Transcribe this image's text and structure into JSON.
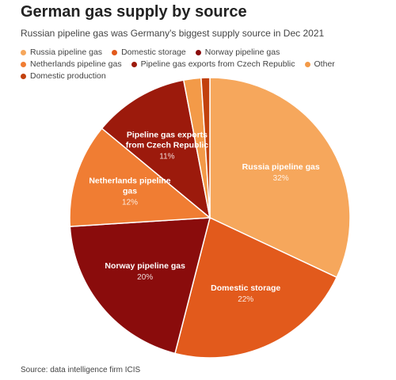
{
  "chart_data": {
    "type": "pie",
    "title": "German gas supply by source",
    "subtitle": "Russian pipeline gas was Germany's biggest supply source in Dec 2021",
    "source": "Source: data intelligence firm ICIS",
    "categories": [
      "Russia pipeline gas",
      "Domestic storage",
      "Norway pipeline gas",
      "Netherlands pipeline gas",
      "Pipeline gas exports from Czech Republic",
      "Other",
      "Domestic production"
    ],
    "values": [
      32,
      22,
      20,
      12,
      11,
      2,
      1
    ],
    "value_labels": [
      "32%",
      "22%",
      "20%",
      "12%",
      "11%",
      null,
      null
    ],
    "colors": [
      "#f6a75c",
      "#e25a1c",
      "#8a0c0c",
      "#f07d33",
      "#9c1a0c",
      "#f39a48",
      "#c2410d"
    ]
  }
}
